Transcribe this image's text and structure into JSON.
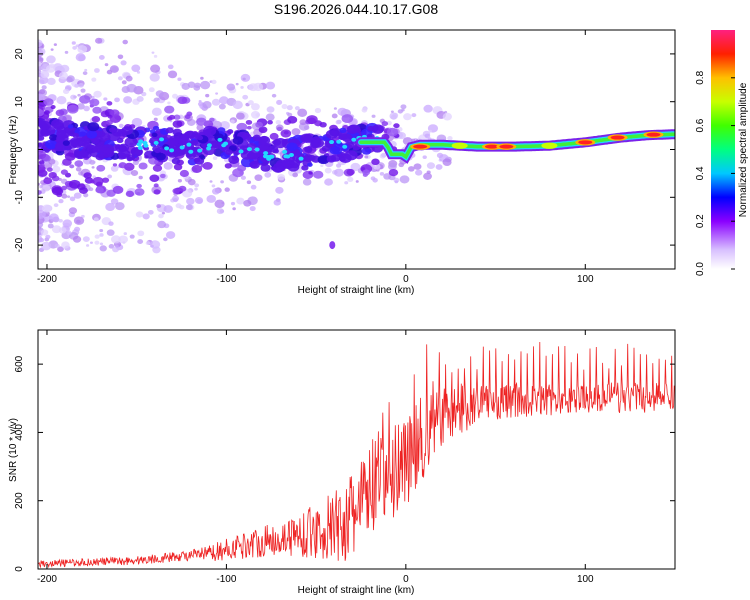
{
  "title": "S196.2026.044.10.17.G08",
  "colors": {
    "snr_line": "#ee2222",
    "track_base": "#3ff03a",
    "blob_main": "#5a14e8",
    "blob_light": "#c9a8ff"
  },
  "chart_data": [
    {
      "id": "spectrogram",
      "type": "heatmap",
      "xlabel": "Height of straight line (km)",
      "ylabel": "Frequency (Hz)",
      "xlim": [
        -205,
        150
      ],
      "ylim": [
        -25,
        25
      ],
      "xticks": [
        -200,
        -100,
        0,
        100
      ],
      "yticks": [
        -20,
        -10,
        0,
        10,
        20
      ],
      "colorbar": {
        "label": "Normalized spectral amplitude",
        "range": [
          0,
          1
        ],
        "ticks": [
          "0.0",
          "0.2",
          "0.4",
          "0.6",
          "0.8"
        ],
        "tick_values": [
          0,
          0.2,
          0.4,
          0.6,
          0.8
        ]
      },
      "track": [
        [
          -205,
          3.0
        ],
        [
          -180,
          2.0
        ],
        [
          -160,
          1.0
        ],
        [
          -140,
          1.5
        ],
        [
          -120,
          0.0
        ],
        [
          -100,
          1.5
        ],
        [
          -80,
          -1.0
        ],
        [
          -60,
          -1.0
        ],
        [
          -40,
          0.5
        ],
        [
          -30,
          1.5
        ],
        [
          -20,
          1.5
        ],
        [
          -12,
          1.5
        ],
        [
          -10,
          0.5
        ],
        [
          -8,
          -1.0
        ],
        [
          -5,
          -1.0
        ],
        [
          -2,
          -1.0
        ],
        [
          0,
          -1.5
        ],
        [
          3,
          0.5
        ],
        [
          8,
          1.0
        ],
        [
          20,
          1.0
        ],
        [
          40,
          0.6
        ],
        [
          60,
          0.6
        ],
        [
          80,
          0.8
        ],
        [
          100,
          1.5
        ],
        [
          120,
          2.5
        ],
        [
          135,
          3.0
        ],
        [
          150,
          3.2
        ]
      ],
      "peaks": [
        [
          8,
          0.6,
          0.95
        ],
        [
          48,
          0.6,
          0.9
        ],
        [
          56,
          0.6,
          0.95
        ],
        [
          100,
          1.5,
          0.95
        ],
        [
          118,
          2.5,
          0.95
        ],
        [
          138,
          3.1,
          0.95
        ],
        [
          30,
          0.8,
          0.5
        ],
        [
          80,
          0.8,
          0.5
        ]
      ]
    },
    {
      "id": "snr",
      "type": "line",
      "xlabel": "Height of straight line (km)",
      "ylabel": "SNR (10 * v/v)",
      "xlim": [
        -205,
        150
      ],
      "ylim": [
        0,
        700
      ],
      "xticks": [
        -200,
        -100,
        0,
        100
      ],
      "yticks": [
        0,
        200,
        400,
        600
      ],
      "envelope": [
        [
          -205,
          15
        ],
        [
          -150,
          25
        ],
        [
          -110,
          45
        ],
        [
          -90,
          70
        ],
        [
          -70,
          90
        ],
        [
          -50,
          110
        ],
        [
          -40,
          120
        ],
        [
          -30,
          150
        ],
        [
          -20,
          230
        ],
        [
          -10,
          270
        ],
        [
          0,
          320
        ],
        [
          10,
          380
        ],
        [
          20,
          440
        ],
        [
          30,
          470
        ],
        [
          50,
          490
        ],
        [
          80,
          495
        ],
        [
          110,
          500
        ],
        [
          150,
          505
        ]
      ],
      "amplitude": [
        [
          -205,
          10
        ],
        [
          -120,
          15
        ],
        [
          -90,
          40
        ],
        [
          -70,
          50
        ],
        [
          -50,
          80
        ],
        [
          -35,
          120
        ],
        [
          -20,
          150
        ],
        [
          -10,
          160
        ],
        [
          0,
          140
        ],
        [
          10,
          120
        ],
        [
          20,
          90
        ],
        [
          40,
          60
        ],
        [
          80,
          45
        ],
        [
          150,
          45
        ]
      ],
      "spike_height": [
        [
          -205,
          0
        ],
        [
          -20,
          0
        ],
        [
          -12,
          200
        ],
        [
          0,
          150
        ],
        [
          10,
          250
        ],
        [
          30,
          160
        ],
        [
          150,
          150
        ]
      ]
    }
  ]
}
